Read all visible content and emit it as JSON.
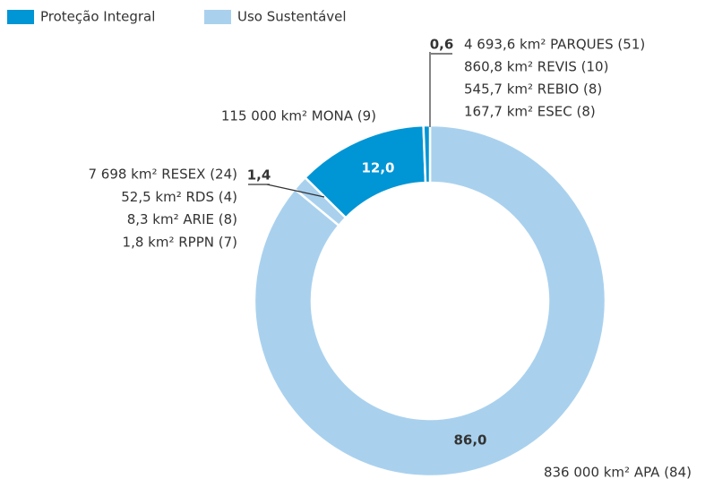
{
  "chart_data": {
    "type": "donut",
    "series": [
      {
        "name": "Proteção Integral",
        "color": "#0095d5",
        "values": [
          12.0,
          0.6
        ],
        "value_labels": [
          "12,0",
          "0,6"
        ],
        "details": [
          [
            "115 000 km² MONA (9)"
          ],
          [
            "4 693,6 km² PARQUES (51)",
            "860,8 km² REVIS (10)",
            "545,7 km² REBIO (8)",
            "167,7 km² ESEC (8)"
          ]
        ]
      },
      {
        "name": "Uso Sustentável",
        "color": "#a9d1ee",
        "values": [
          86.0,
          1.4
        ],
        "value_labels": [
          "86,0",
          "1,4"
        ],
        "details": [
          [
            "836 000 km² APA (84)"
          ],
          [
            "7 698 km² RESEX (24)",
            "52,5 km² RDS (4)",
            "8,3 km² ARIE (8)",
            "1,8 km² RPPN (7)"
          ]
        ]
      }
    ]
  }
}
